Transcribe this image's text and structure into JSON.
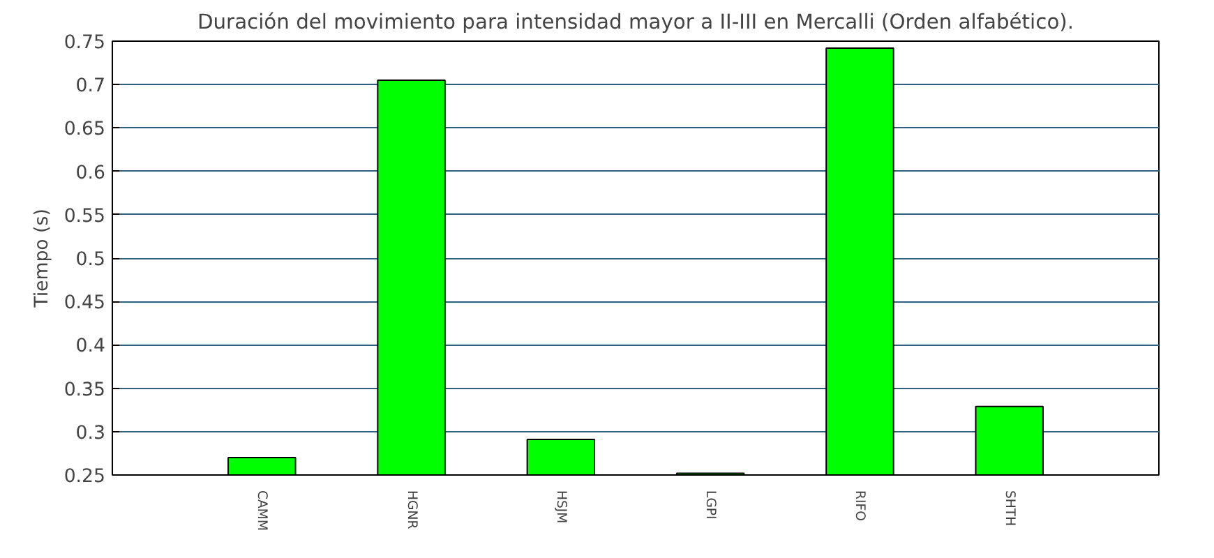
{
  "chart_data": {
    "type": "bar",
    "title": "Duración del movimiento para intensidad mayor a II-III en Mercalli (Orden alfabético).",
    "ylabel": "Tiempo (s)",
    "categories": [
      "CAMM",
      "HGNR",
      "HSJM",
      "LGPI",
      "RIFO",
      "SHTH"
    ],
    "values": [
      0.27,
      0.705,
      0.291,
      0.252,
      0.742,
      0.329
    ],
    "color": "#00ff00",
    "ylim": [
      0.25,
      0.75
    ],
    "yticks": [
      0.25,
      0.3,
      0.35,
      0.4,
      0.45,
      0.5,
      0.55,
      0.6,
      0.65,
      0.7,
      0.75
    ],
    "grid": "y"
  }
}
